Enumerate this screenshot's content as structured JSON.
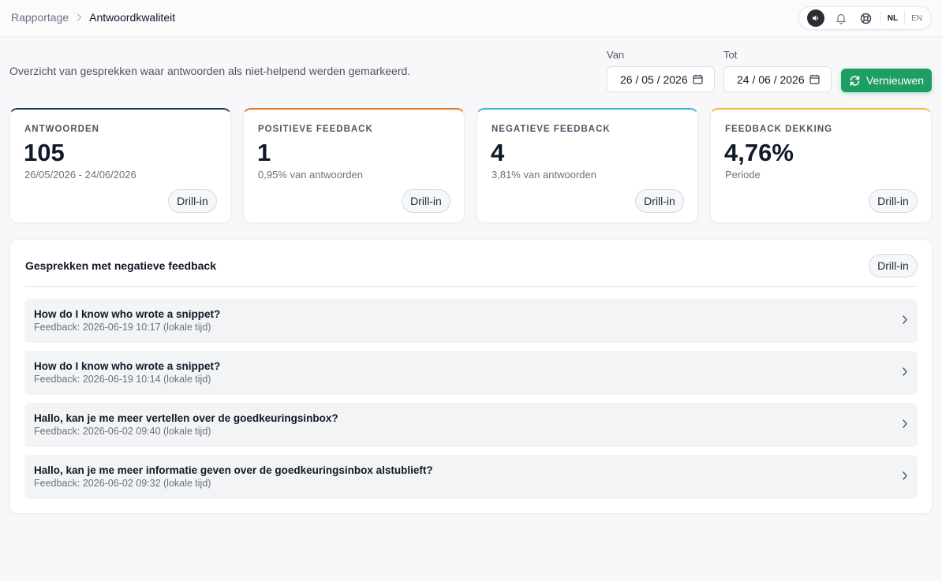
{
  "breadcrumb": {
    "parent": "Rapportage",
    "separator": ">",
    "current": "Antwoordkwaliteit"
  },
  "toolbar": {
    "icons": [
      "sound-icon",
      "bell-icon",
      "lifebuoy-icon"
    ],
    "languages": [
      {
        "code": "NL",
        "active": true
      },
      {
        "code": "EN",
        "active": false
      }
    ]
  },
  "intro": "Overzicht van gesprekken waar antwoorden als niet-helpend werden gemarkeerd.",
  "filters": {
    "from": {
      "label": "Van",
      "value": "26 / 05 / 2026"
    },
    "to": {
      "label": "Tot",
      "value": "24 / 06 / 2026"
    },
    "refresh_label": "Vernieuwen"
  },
  "kpis": [
    {
      "label": "ANTWOORDEN",
      "value": "105",
      "sub": "26/05/2026 - 24/06/2026",
      "accent": "#1e3a5f",
      "drill": "Drill-in"
    },
    {
      "label": "POSITIEVE FEEDBACK",
      "value": "1",
      "sub": "0,95% van antwoorden",
      "accent": "#e07a26",
      "drill": "Drill-in"
    },
    {
      "label": "NEGATIEVE FEEDBACK",
      "value": "4",
      "sub": "3,81% van antwoorden",
      "accent": "#38b2d8",
      "drill": "Drill-in"
    },
    {
      "label": "FEEDBACK DEKKING",
      "value": "4,76%",
      "sub": "Periode",
      "accent": "#f0b73c",
      "drill": "Drill-in"
    }
  ],
  "panel": {
    "title": "Gesprekken met negatieve feedback",
    "drill": "Drill-in",
    "items": [
      {
        "title": "How do I know who wrote a snippet?",
        "sub": "Feedback: 2026-06-19 10:17 (lokale tijd)"
      },
      {
        "title": "How do I know who wrote a snippet?",
        "sub": "Feedback: 2026-06-19 10:14 (lokale tijd)"
      },
      {
        "title": "Hallo, kan je me meer vertellen over de goedkeuringsinbox?",
        "sub": "Feedback: 2026-06-02 09:40 (lokale tijd)"
      },
      {
        "title": "Hallo, kan je me meer informatie geven over de goedkeuringsinbox alstublieft?",
        "sub": "Feedback: 2026-06-02 09:32 (lokale tijd)"
      }
    ]
  },
  "colors": {
    "primary_green": "#1e9e63",
    "text_dark": "#111827",
    "muted": "#6b7280"
  }
}
